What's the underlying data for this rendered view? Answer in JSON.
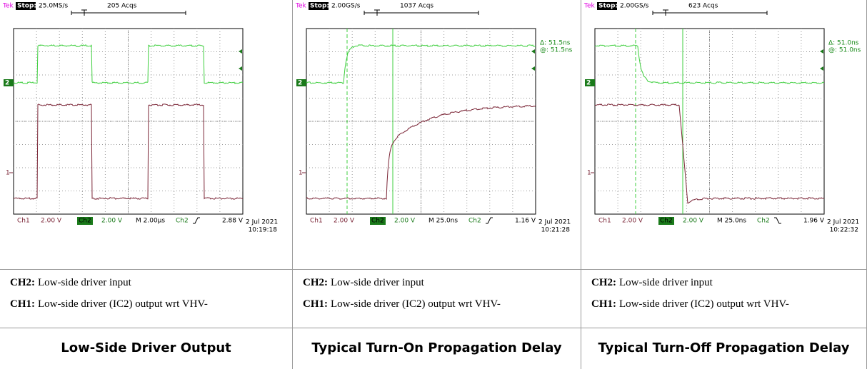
{
  "panels": [
    {
      "scope": {
        "brand": "Tek",
        "state": "Stop:",
        "sample_rate": "25.0MS/s",
        "acquisitions": "205 Acqs",
        "ch2_marker": "2",
        "ch1_marker": "1",
        "ch1_label": "Ch1",
        "ch1_scale": "2.00 V",
        "ch2_label": "Ch2",
        "ch2_scale": "2.00 V",
        "timebase": "M 2.00µs",
        "trigger_source": "Ch2",
        "trigger_level": "2.88 V",
        "date": "2 Jul 2021",
        "time": "10:19:18"
      },
      "captions": [
        {
          "label": "CH2:",
          "text": "Low-side driver input"
        },
        {
          "label": "CH1:",
          "text": "Low-side driver (IC2) output wrt VHV-"
        }
      ],
      "title": "Low-Side Driver Output"
    },
    {
      "scope": {
        "brand": "Tek",
        "state": "Stop:",
        "sample_rate": "2.00GS/s",
        "acquisitions": "1037 Acqs",
        "cursor_delta": "Δ: 51.5ns",
        "cursor_at": "@: 51.5ns",
        "ch2_marker": "2",
        "ch1_marker": "1",
        "ch1_label": "Ch1",
        "ch1_scale": "2.00 V",
        "ch2_label": "Ch2",
        "ch2_scale": "2.00 V",
        "timebase": "M 25.0ns",
        "trigger_source": "Ch2",
        "trigger_level": "1.16 V",
        "date": "2 Jul 2021",
        "time": "10:21:28"
      },
      "captions": [
        {
          "label": "CH2:",
          "text": "Low-side driver input"
        },
        {
          "label": "CH1:",
          "text": "Low-side driver (IC2) output wrt VHV-"
        }
      ],
      "title": "Typical Turn-On Propagation Delay"
    },
    {
      "scope": {
        "brand": "Tek",
        "state": "Stop:",
        "sample_rate": "2.00GS/s",
        "acquisitions": "623 Acqs",
        "cursor_delta": "Δ: 51.0ns",
        "cursor_at": "@: 51.0ns",
        "ch2_marker": "2",
        "ch1_marker": "1",
        "ch1_label": "Ch1",
        "ch1_scale": "2.00 V",
        "ch2_label": "Ch2",
        "ch2_scale": "2.00 V",
        "timebase": "M 25.0ns",
        "trigger_source": "Ch2",
        "trigger_level": "1.96 V",
        "date": "2 Jul 2021",
        "time": "10:22:32"
      },
      "captions": [
        {
          "label": "CH2:",
          "text": "Low-side driver input"
        },
        {
          "label": "CH1:",
          "text": "Low-side driver (IC2) output wrt VHV-"
        }
      ],
      "title": "Typical Turn-Off Propagation Delay"
    }
  ]
}
